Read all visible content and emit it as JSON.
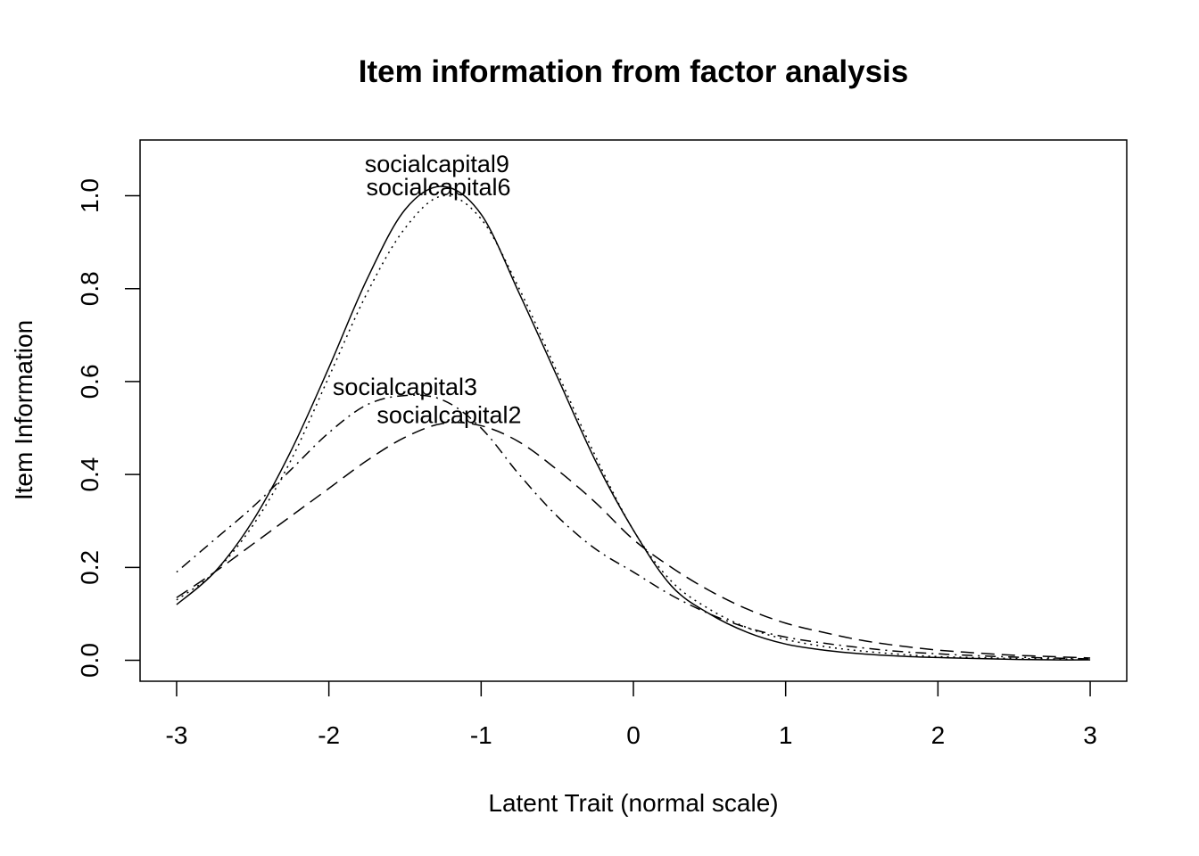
{
  "chart_data": {
    "type": "line",
    "title": "Item information from factor analysis",
    "xlabel": "Latent Trait (normal scale)",
    "ylabel": "Item Information",
    "xlim": [
      -3.24,
      3.24
    ],
    "ylim": [
      -0.045,
      1.12
    ],
    "xticks": [
      -3,
      -2,
      -1,
      0,
      1,
      2,
      3
    ],
    "yticks": [
      0.0,
      0.2,
      0.4,
      0.6,
      0.8,
      1.0
    ],
    "xtick_labels": [
      "-3",
      "-2",
      "-1",
      "0",
      "1",
      "2",
      "3"
    ],
    "ytick_labels": [
      "0.0",
      "0.2",
      "0.4",
      "0.6",
      "0.8",
      "1.0"
    ],
    "grid": false,
    "legend": "none",
    "x": [
      -3.0,
      -2.75,
      -2.5,
      -2.25,
      -2.0,
      -1.75,
      -1.5,
      -1.25,
      -1.0,
      -0.75,
      -0.5,
      -0.25,
      0.0,
      0.25,
      0.5,
      0.75,
      1.0,
      1.25,
      1.5,
      1.75,
      2.0,
      2.25,
      2.5,
      2.75,
      3.0
    ],
    "series": [
      {
        "label": "socialcapital9",
        "dash": "solid",
        "label_x": -1.29,
        "label_y": 1.07,
        "values": [
          0.12,
          0.19,
          0.3,
          0.45,
          0.63,
          0.82,
          0.97,
          1.02,
          0.96,
          0.79,
          0.61,
          0.43,
          0.28,
          0.16,
          0.1,
          0.06,
          0.035,
          0.022,
          0.014,
          0.009,
          0.006,
          0.004,
          0.002,
          0.001,
          0.001
        ]
      },
      {
        "label": "socialcapital6",
        "dash": "dotted",
        "label_x": -1.28,
        "label_y": 1.02,
        "values": [
          0.13,
          0.19,
          0.29,
          0.43,
          0.61,
          0.79,
          0.93,
          1.0,
          0.95,
          0.8,
          0.62,
          0.44,
          0.28,
          0.17,
          0.11,
          0.07,
          0.045,
          0.03,
          0.02,
          0.013,
          0.008,
          0.006,
          0.004,
          0.003,
          0.002
        ]
      },
      {
        "label": "socialcapital3",
        "dash": "dotdash",
        "label_x": -1.5,
        "label_y": 0.59,
        "values": [
          0.19,
          0.26,
          0.33,
          0.41,
          0.49,
          0.55,
          0.57,
          0.56,
          0.5,
          0.4,
          0.31,
          0.24,
          0.19,
          0.14,
          0.1,
          0.07,
          0.05,
          0.037,
          0.027,
          0.019,
          0.014,
          0.01,
          0.007,
          0.005,
          0.003
        ]
      },
      {
        "label": "socialcapital2",
        "dash": "dashed",
        "label_x": -1.21,
        "label_y": 0.53,
        "values": [
          0.135,
          0.19,
          0.25,
          0.31,
          0.37,
          0.43,
          0.48,
          0.51,
          0.505,
          0.47,
          0.41,
          0.34,
          0.26,
          0.2,
          0.15,
          0.11,
          0.08,
          0.06,
          0.043,
          0.031,
          0.022,
          0.016,
          0.011,
          0.008,
          0.005
        ]
      }
    ]
  }
}
